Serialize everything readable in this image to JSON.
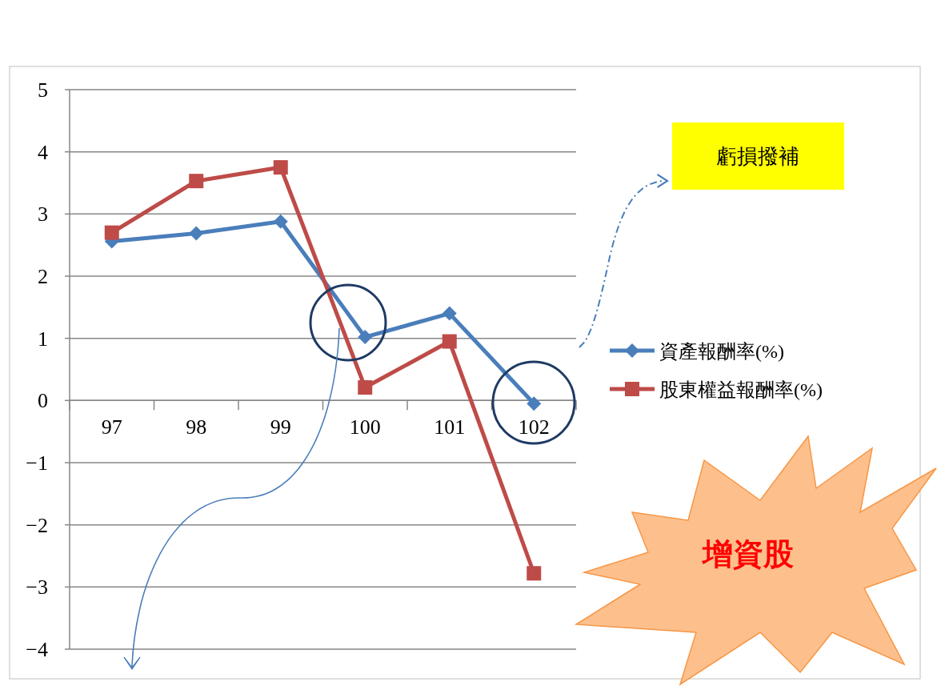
{
  "chart_data": {
    "type": "line",
    "categories": [
      "97",
      "98",
      "99",
      "100",
      "101",
      "102"
    ],
    "series": [
      {
        "name": "資產報酬率(%)",
        "color": "#4a7ebb",
        "marker": "diamond",
        "values": [
          2.56,
          2.69,
          2.88,
          1.02,
          1.4,
          -0.05
        ]
      },
      {
        "name": "股東權益報酬率(%)",
        "color": "#be4b48",
        "marker": "square",
        "values": [
          2.7,
          3.53,
          3.75,
          0.21,
          0.95,
          -2.78
        ]
      }
    ],
    "ylim": [
      -4,
      5
    ],
    "yticks": [
      5,
      4,
      3,
      2,
      1,
      0,
      {
        "value": -1,
        "label": "−1"
      },
      {
        "value": -2,
        "label": "−2"
      },
      {
        "value": -3,
        "label": "−3"
      },
      {
        "value": -4,
        "label": "−4"
      }
    ],
    "grid": "y",
    "legend": "right",
    "line_style": "solid",
    "annotations": [
      "虧損撥補",
      "增資股"
    ]
  }
}
